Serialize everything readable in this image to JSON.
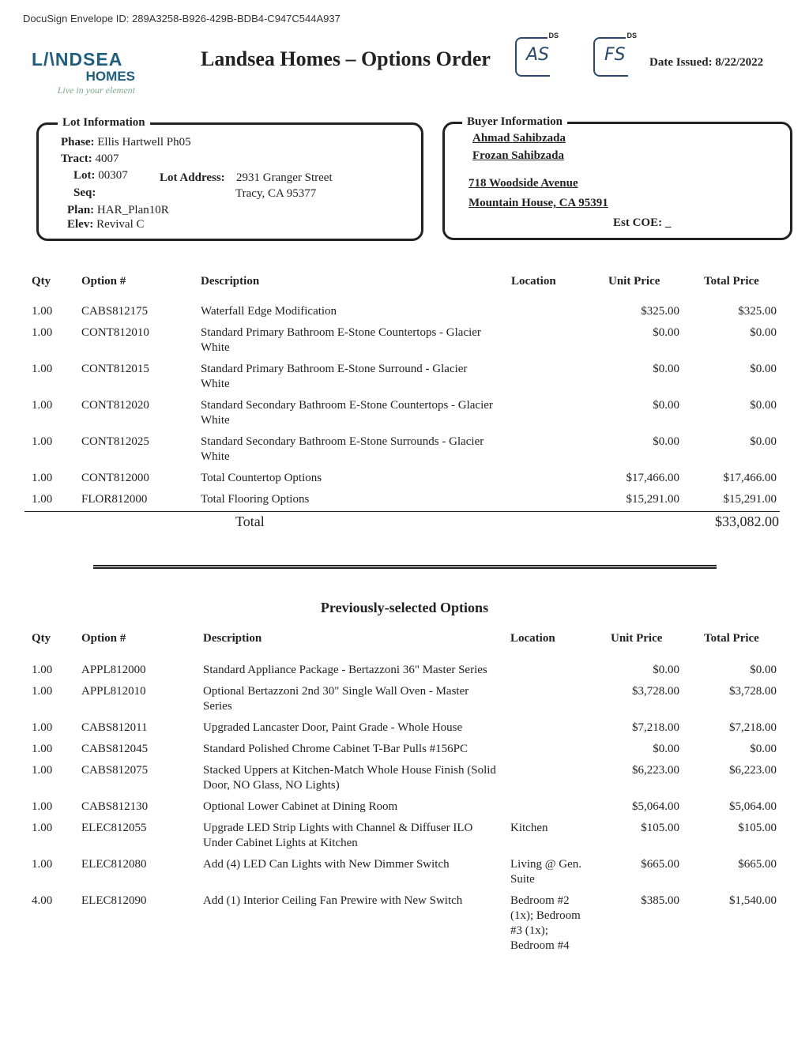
{
  "envelope_id": "DocuSign Envelope ID: 289A3258-B926-429B-BDB4-C947C544A937",
  "logo": {
    "name": "LANDSEA",
    "sub": "HOMES",
    "tagline": "Live in your element"
  },
  "title": "Landsea Homes – Options Order",
  "initials": [
    {
      "label": "DS",
      "text": "AS"
    },
    {
      "label": "DS",
      "text": "FS"
    }
  ],
  "date_issued": {
    "label": "Date Issued:",
    "value": "8/22/2022"
  },
  "lot": {
    "title": "Lot Information",
    "phase_label": "Phase:",
    "phase": "Ellis Hartwell Ph05",
    "tract_label": "Tract:",
    "tract": "4007",
    "lot_label": "Lot:",
    "lot": "00307",
    "seq_label": "Seq:",
    "plan_label": "Plan:",
    "plan": "HAR_Plan10R",
    "elev_label": "Elev:",
    "elev": "Revival C",
    "address_label": "Lot Address:",
    "address1": "2931 Granger Street",
    "address2": "Tracy, CA 95377"
  },
  "buyer": {
    "title": "Buyer Information",
    "name1": "Ahmad Sahibzada",
    "name2": "Frozan Sahibzada",
    "street": "718 Woodside Avenue",
    "city": "Mountain House, CA 95391",
    "est_coe_label": "Est COE:",
    "est_coe": "_"
  },
  "columns": {
    "qty": "Qty",
    "option": "Option #",
    "description": "Description",
    "location": "Location",
    "unit_price": "Unit Price",
    "total_price": "Total Price"
  },
  "current_options": [
    {
      "qty": "1.00",
      "option": "CABS812175",
      "description": "Waterfall Edge Modification",
      "location": "",
      "unit": "$325.00",
      "total": "$325.00"
    },
    {
      "qty": "1.00",
      "option": "CONT812010",
      "description": "Standard Primary Bathroom E-Stone Countertops - Glacier White",
      "location": "",
      "unit": "$0.00",
      "total": "$0.00"
    },
    {
      "qty": "1.00",
      "option": "CONT812015",
      "description": "Standard Primary Bathroom E-Stone Surround - Glacier White",
      "location": "",
      "unit": "$0.00",
      "total": "$0.00"
    },
    {
      "qty": "1.00",
      "option": "CONT812020",
      "description": "Standard Secondary Bathroom E-Stone Countertops - Glacier White",
      "location": "",
      "unit": "$0.00",
      "total": "$0.00"
    },
    {
      "qty": "1.00",
      "option": "CONT812025",
      "description": "Standard Secondary Bathroom E-Stone Surrounds - Glacier White",
      "location": "",
      "unit": "$0.00",
      "total": "$0.00"
    },
    {
      "qty": "1.00",
      "option": "CONT812000",
      "description": "Total Countertop Options",
      "location": "",
      "unit": "$17,466.00",
      "total": "$17,466.00"
    },
    {
      "qty": "1.00",
      "option": "FLOR812000",
      "description": "Total Flooring Options",
      "location": "",
      "unit": "$15,291.00",
      "total": "$15,291.00"
    }
  ],
  "total": {
    "label": "Total",
    "value": "$33,082.00"
  },
  "previous_title": "Previously-selected Options",
  "previous_options": [
    {
      "qty": "1.00",
      "option": "APPL812000",
      "description": "Standard Appliance Package - Bertazzoni 36\" Master Series",
      "location": "",
      "unit": "$0.00",
      "total": "$0.00"
    },
    {
      "qty": "1.00",
      "option": "APPL812010",
      "description": "Optional Bertazzoni 2nd 30\" Single Wall Oven - Master Series",
      "location": "",
      "unit": "$3,728.00",
      "total": "$3,728.00"
    },
    {
      "qty": "1.00",
      "option": "CABS812011",
      "description": "Upgraded Lancaster Door, Paint Grade - Whole House",
      "location": "",
      "unit": "$7,218.00",
      "total": "$7,218.00"
    },
    {
      "qty": "1.00",
      "option": "CABS812045",
      "description": "Standard Polished Chrome Cabinet T-Bar Pulls #156PC",
      "location": "",
      "unit": "$0.00",
      "total": "$0.00"
    },
    {
      "qty": "1.00",
      "option": "CABS812075",
      "description": "Stacked Uppers at Kitchen-Match Whole House Finish (Solid Door, NO Glass, NO Lights)",
      "location": "",
      "unit": "$6,223.00",
      "total": "$6,223.00"
    },
    {
      "qty": "1.00",
      "option": "CABS812130",
      "description": "Optional Lower Cabinet at Dining Room",
      "location": "",
      "unit": "$5,064.00",
      "total": "$5,064.00"
    },
    {
      "qty": "1.00",
      "option": "ELEC812055",
      "description": "Upgrade LED Strip Lights with Channel & Diffuser ILO Under Cabinet Lights at Kitchen",
      "location": "Kitchen",
      "unit": "$105.00",
      "total": "$105.00"
    },
    {
      "qty": "1.00",
      "option": "ELEC812080",
      "description": "Add (4) LED Can Lights with New Dimmer Switch",
      "location": "Living @ Gen. Suite",
      "unit": "$665.00",
      "total": "$665.00"
    },
    {
      "qty": "4.00",
      "option": "ELEC812090",
      "description": "Add (1) Interior Ceiling Fan Prewire with New Switch",
      "location": "Bedroom #2 (1x); Bedroom #3 (1x); Bedroom #4",
      "unit": "$385.00",
      "total": "$1,540.00"
    }
  ]
}
